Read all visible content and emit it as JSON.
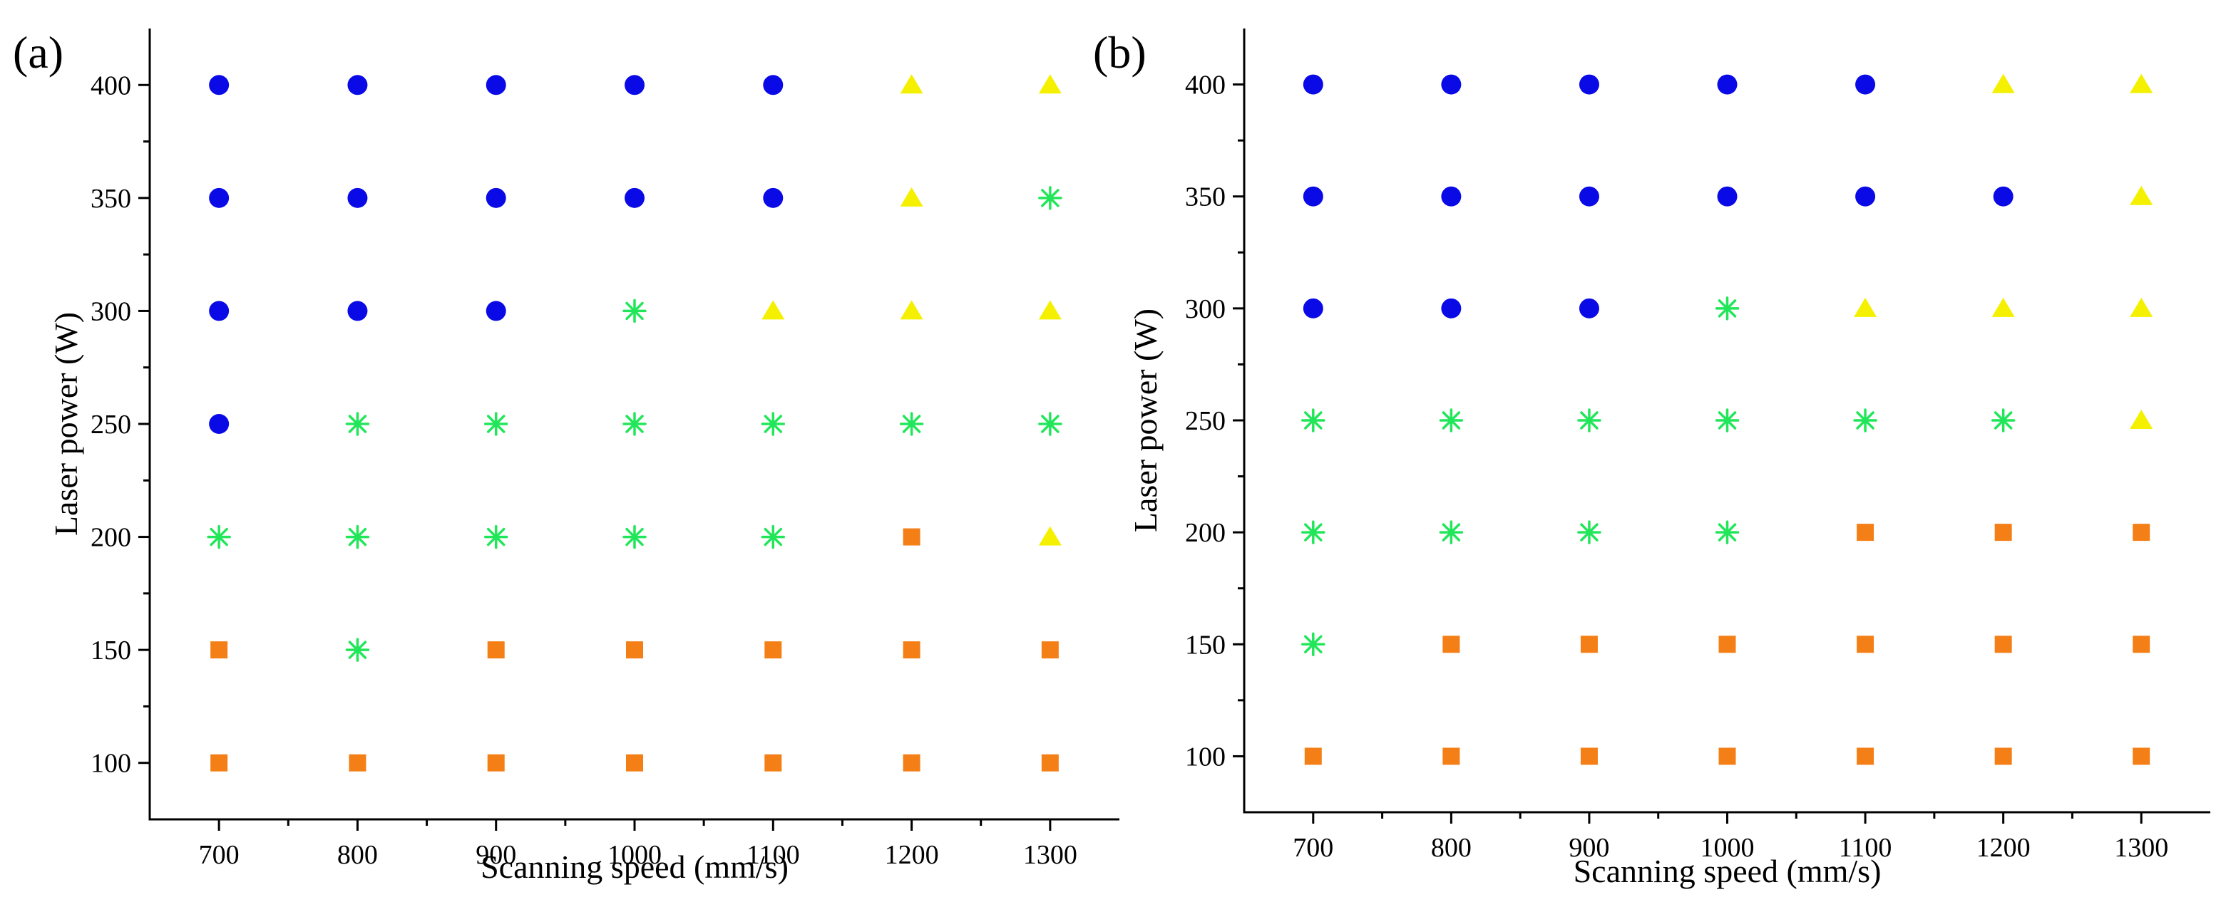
{
  "colors": {
    "circle": "#0a0ae6",
    "star": "#22e65a",
    "triangle": "#f5f000",
    "square": "#f57f17"
  },
  "chart_data": [
    {
      "panel_label": "(a)",
      "type": "scatter",
      "xlabel": "Scanning speed (mm/s)",
      "ylabel": "Laser power (W)",
      "x_ticks": [
        700,
        800,
        900,
        1000,
        1100,
        1200,
        1300
      ],
      "y_ticks": [
        100,
        150,
        200,
        250,
        300,
        350,
        400
      ],
      "xlim": [
        650,
        1350
      ],
      "ylim": [
        75,
        425
      ],
      "speeds": [
        700,
        800,
        900,
        1000,
        1100,
        1200,
        1300
      ],
      "rows": [
        {
          "power": 400,
          "markers": [
            "circle",
            "circle",
            "circle",
            "circle",
            "circle",
            "triangle",
            "triangle"
          ]
        },
        {
          "power": 350,
          "markers": [
            "circle",
            "circle",
            "circle",
            "circle",
            "circle",
            "triangle",
            "star"
          ]
        },
        {
          "power": 300,
          "markers": [
            "circle",
            "circle",
            "circle",
            "star",
            "triangle",
            "triangle",
            "triangle"
          ]
        },
        {
          "power": 250,
          "markers": [
            "circle",
            "star",
            "star",
            "star",
            "star",
            "star",
            "star"
          ]
        },
        {
          "power": 200,
          "markers": [
            "star",
            "star",
            "star",
            "star",
            "star",
            "square",
            "triangle"
          ]
        },
        {
          "power": 150,
          "markers": [
            "square",
            "star",
            "square",
            "square",
            "square",
            "square",
            "square"
          ]
        },
        {
          "power": 100,
          "markers": [
            "square",
            "square",
            "square",
            "square",
            "square",
            "square",
            "square"
          ]
        }
      ]
    },
    {
      "panel_label": "(b)",
      "type": "scatter",
      "xlabel": "Scanning speed (mm/s)",
      "ylabel": "Laser power (W)",
      "x_ticks": [
        700,
        800,
        900,
        1000,
        1100,
        1200,
        1300
      ],
      "y_ticks": [
        100,
        150,
        200,
        250,
        300,
        350,
        400
      ],
      "xlim": [
        650,
        1350
      ],
      "ylim": [
        75,
        425
      ],
      "speeds": [
        700,
        800,
        900,
        1000,
        1100,
        1200,
        1300
      ],
      "rows": [
        {
          "power": 400,
          "markers": [
            "circle",
            "circle",
            "circle",
            "circle",
            "circle",
            "triangle",
            "triangle"
          ]
        },
        {
          "power": 350,
          "markers": [
            "circle",
            "circle",
            "circle",
            "circle",
            "circle",
            "circle",
            "triangle"
          ]
        },
        {
          "power": 300,
          "markers": [
            "circle",
            "circle",
            "circle",
            "star",
            "triangle",
            "triangle",
            "triangle"
          ]
        },
        {
          "power": 250,
          "markers": [
            "star",
            "star",
            "star",
            "star",
            "star",
            "star",
            "triangle"
          ]
        },
        {
          "power": 200,
          "markers": [
            "star",
            "star",
            "star",
            "star",
            "square",
            "square",
            "square"
          ]
        },
        {
          "power": 150,
          "markers": [
            "star",
            "square",
            "square",
            "square",
            "square",
            "square",
            "square"
          ]
        },
        {
          "power": 100,
          "markers": [
            "square",
            "square",
            "square",
            "square",
            "square",
            "square",
            "square"
          ]
        }
      ]
    }
  ]
}
